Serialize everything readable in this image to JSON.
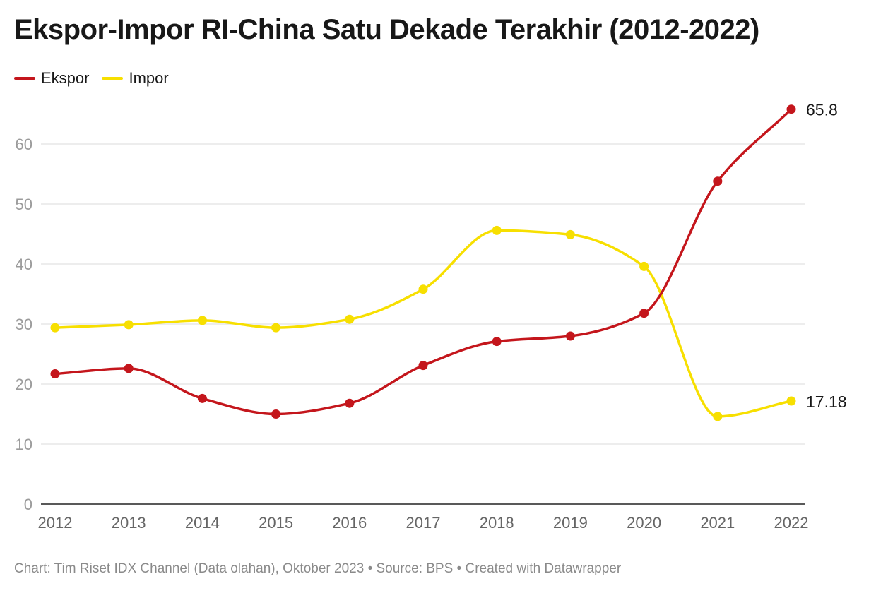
{
  "title": "Ekspor-Impor RI-China Satu Dekade Terakhir (2012-2022)",
  "footer": "Chart: Tim Riset IDX Channel (Data olahan), Oktober 2023 • Source: BPS • Created with Datawrapper",
  "chart_data": {
    "type": "line",
    "x": [
      "2012",
      "2013",
      "2014",
      "2015",
      "2016",
      "2017",
      "2018",
      "2019",
      "2020",
      "2021",
      "2022"
    ],
    "ylim": [
      0,
      70
    ],
    "yticks": [
      0,
      10,
      20,
      30,
      40,
      50,
      60
    ],
    "grid": true,
    "legend_placement": "top-left",
    "series": [
      {
        "name": "Ekspor",
        "color": "#c4161c",
        "values": [
          21.7,
          22.6,
          17.6,
          15.0,
          16.8,
          23.1,
          27.1,
          28.0,
          31.8,
          53.8,
          65.8
        ],
        "end_label": "65.8"
      },
      {
        "name": "Impor",
        "color": "#f7df00",
        "values": [
          29.4,
          29.9,
          30.6,
          29.4,
          30.8,
          35.8,
          45.6,
          44.9,
          39.6,
          14.6,
          17.18
        ],
        "end_label": "17.18"
      }
    ]
  }
}
